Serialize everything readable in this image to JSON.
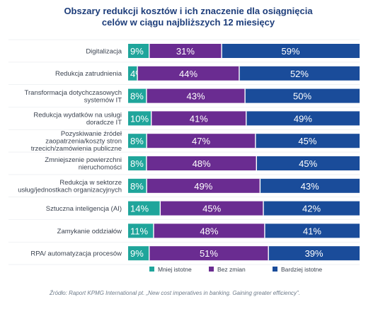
{
  "header": {
    "title_line1": "Obszary redukcji kosztów i ich znaczenie dla osiągnięcia",
    "title_line2": "celów w ciągu najbliższych 12 miesięcy"
  },
  "chart_data": {
    "type": "bar",
    "orientation": "horizontal",
    "stacked": true,
    "unit": "%",
    "categories": [
      [
        "Digitalizacja"
      ],
      [
        "Redukcja zatrudnienia"
      ],
      [
        "Transformacja dotychczasowych",
        "systemów IT"
      ],
      [
        "Redukcja wydatków na usługi",
        "doradcze IT"
      ],
      [
        "Pozyskiwanie źródeł",
        "zaopatrzenia/koszty stron",
        "trzecich/zamówienia publiczne"
      ],
      [
        "Zmniejszenie powierzchni",
        "nieruchomości"
      ],
      [
        "Redukcja w sektorze",
        "usług/jednostkach organizacyjnych"
      ],
      [
        "Sztuczna inteligencja (AI)"
      ],
      [
        "Zamykanie oddziałów"
      ],
      [
        "RPA/ automatyzacja procesów"
      ]
    ],
    "series": [
      {
        "name": "Mniej istotne",
        "color": "#1fa59b",
        "values": [
          9,
          4,
          8,
          10,
          8,
          8,
          8,
          14,
          11,
          9
        ]
      },
      {
        "name": "Bez zmian",
        "color": "#6a2c91",
        "values": [
          31,
          44,
          43,
          41,
          47,
          48,
          49,
          45,
          48,
          51
        ]
      },
      {
        "name": "Bardziej istotne",
        "color": "#1a4c9a",
        "values": [
          59,
          52,
          50,
          49,
          45,
          45,
          43,
          42,
          41,
          39
        ]
      }
    ],
    "legend_position": "bottom",
    "grid": true
  },
  "footer": {
    "source": "Źródło: Raport KPMG International pt. „New cost imperatives in banking. Gaining greater efficiency”."
  }
}
